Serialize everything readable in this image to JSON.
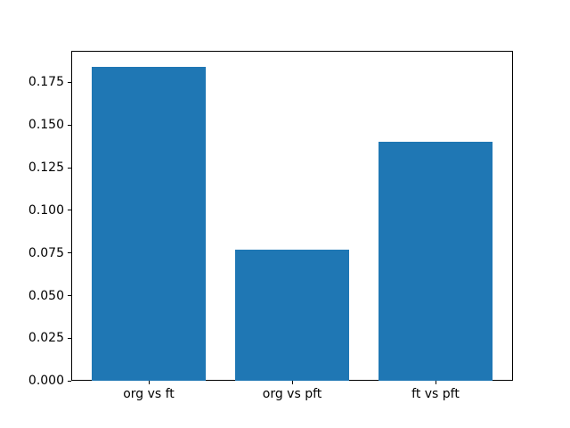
{
  "figure": {
    "background": "#ffffff",
    "title": ""
  },
  "chart_data": {
    "type": "bar",
    "title": "",
    "xlabel": "",
    "ylabel": "",
    "categories": [
      "org vs ft",
      "org vs pft",
      "ft vs pft"
    ],
    "values": [
      0.184,
      0.077,
      0.14
    ],
    "bar_color": "#1f77b4",
    "bar_width_fraction": 0.8,
    "xlim": [
      -0.54,
      2.54
    ],
    "ylim": [
      0,
      0.1932
    ],
    "yticks": [
      0,
      0.025,
      0.05,
      0.075,
      0.1,
      0.125,
      0.15,
      0.175
    ],
    "ytick_labels": [
      "0.000",
      "0.025",
      "0.050",
      "0.075",
      "0.100",
      "0.125",
      "0.150",
      "0.175"
    ],
    "grid": false,
    "legend": null,
    "spine_color": "#000000",
    "tick_color": "#000000",
    "text_color": "#000000"
  }
}
